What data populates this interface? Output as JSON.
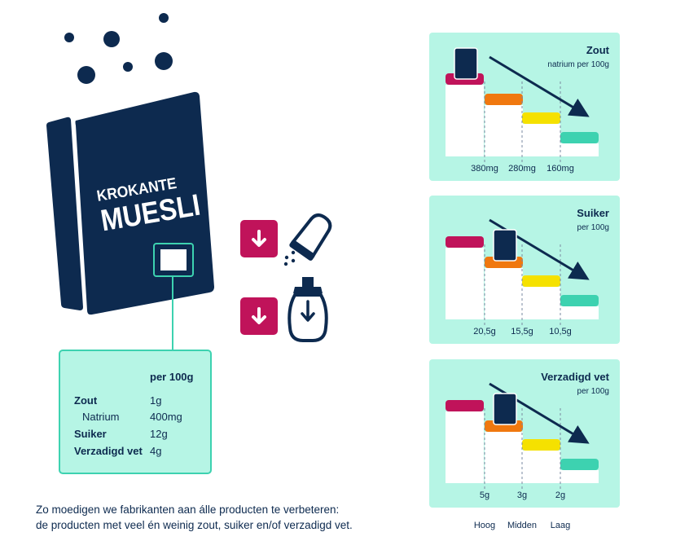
{
  "box": {
    "title_line1": "KROKANTE",
    "title_line2": "MUESLI"
  },
  "nutrition_label": {
    "header": "per 100g",
    "rows": [
      {
        "name": "Zout",
        "value": "1g"
      },
      {
        "name": "Natrium",
        "value": "400mg"
      },
      {
        "name": "Suiker",
        "value": "12g"
      },
      {
        "name": "Verzadigd vet",
        "value": "4g"
      }
    ]
  },
  "icons": {
    "reduce_salt": "down-arrow-icon",
    "salt_shaker": "salt-shaker-icon",
    "reduce_sugar": "down-arrow-icon",
    "sugar_dispenser": "sugar-dispenser-icon"
  },
  "colors": {
    "navy": "#0d2a4f",
    "mint": "#b6f5e5",
    "magenta": "#c0135a",
    "orange": "#f0780f",
    "yellow": "#f5e100",
    "teal": "#3dd2b0"
  },
  "panels": [
    {
      "title": "Zout",
      "subtitle": "natrium per 100g",
      "tick_labels": [
        "380mg",
        "280mg",
        "160mg"
      ],
      "product_level": "Hoog"
    },
    {
      "title": "Suiker",
      "subtitle": "per 100g",
      "tick_labels": [
        "20,5g",
        "15,5g",
        "10,5g"
      ],
      "product_level": "Midden"
    },
    {
      "title": "Verzadigd vet",
      "subtitle": "per 100g",
      "tick_labels": [
        "5g",
        "3g",
        "2g"
      ],
      "product_level": "Midden"
    }
  ],
  "levels": [
    "Hoog",
    "Midden",
    "Laag"
  ],
  "footer": {
    "line1": "Zo moedigen we fabrikanten aan álle producten te verbeteren:",
    "line2": "de producten met veel én weinig zout, suiker en/of verzadigd vet."
  }
}
